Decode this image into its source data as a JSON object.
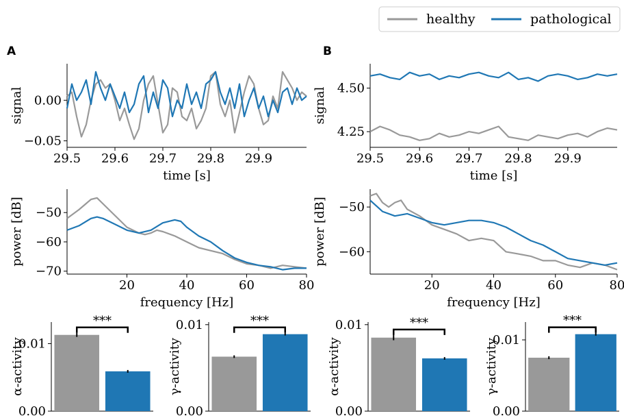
{
  "legend": {
    "placement": "top-right",
    "entries": [
      {
        "label": "healthy",
        "color": "#999999"
      },
      {
        "label": "pathological",
        "color": "#1f77b4"
      }
    ]
  },
  "panels": {
    "A": "A",
    "B": "B"
  },
  "chart_data": [
    {
      "id": "A-signal",
      "panel": "A",
      "type": "line",
      "xlabel": "time [s]",
      "ylabel": "signal",
      "xlim": [
        29.5,
        30.0
      ],
      "ylim": [
        -0.058,
        0.045
      ],
      "xticks": [
        29.5,
        29.6,
        29.7,
        29.8,
        29.9
      ],
      "xtick_labels": [
        "29.5",
        "29.6",
        "29.7",
        "29.8",
        "29.9"
      ],
      "yticks": [
        0.0,
        -0.05
      ],
      "ytick_labels": [
        "0.00",
        "−0.05"
      ],
      "grid": false,
      "series": [
        {
          "name": "healthy",
          "color": "#999999",
          "x": [
            29.5,
            29.51,
            29.52,
            29.53,
            29.54,
            29.55,
            29.56,
            29.57,
            29.58,
            29.59,
            29.6,
            29.61,
            29.62,
            29.63,
            29.64,
            29.65,
            29.66,
            29.67,
            29.68,
            29.69,
            29.7,
            29.71,
            29.72,
            29.73,
            29.74,
            29.75,
            29.76,
            29.77,
            29.78,
            29.79,
            29.8,
            29.81,
            29.82,
            29.83,
            29.84,
            29.85,
            29.86,
            29.87,
            29.88,
            29.89,
            29.9,
            29.91,
            29.92,
            29.93,
            29.94,
            29.95,
            29.96,
            29.97,
            29.98,
            29.99,
            30.0
          ],
          "y": [
            0.005,
            0.01,
            -0.02,
            -0.045,
            -0.03,
            0.0,
            0.02,
            0.025,
            0.015,
            0.02,
            0.0,
            -0.025,
            -0.01,
            -0.03,
            -0.048,
            -0.035,
            0.0,
            0.02,
            0.03,
            -0.005,
            -0.04,
            -0.03,
            0.015,
            0.01,
            -0.02,
            -0.025,
            -0.01,
            -0.035,
            -0.025,
            -0.01,
            0.03,
            0.035,
            -0.005,
            -0.02,
            0.0,
            -0.04,
            -0.015,
            0.01,
            0.03,
            0.02,
            -0.01,
            -0.03,
            -0.025,
            0.005,
            -0.01,
            0.035,
            0.025,
            0.015,
            0.0,
            0.01,
            0.005
          ]
        },
        {
          "name": "pathological",
          "color": "#1f77b4",
          "x": [
            29.5,
            29.51,
            29.52,
            29.53,
            29.54,
            29.55,
            29.56,
            29.57,
            29.58,
            29.59,
            29.6,
            29.61,
            29.62,
            29.63,
            29.64,
            29.65,
            29.66,
            29.67,
            29.68,
            29.69,
            29.7,
            29.71,
            29.72,
            29.73,
            29.74,
            29.75,
            29.76,
            29.77,
            29.78,
            29.79,
            29.8,
            29.81,
            29.82,
            29.83,
            29.84,
            29.85,
            29.86,
            29.87,
            29.88,
            29.89,
            29.9,
            29.91,
            29.92,
            29.93,
            29.94,
            29.95,
            29.96,
            29.97,
            29.98,
            29.99,
            30.0
          ],
          "y": [
            -0.01,
            0.02,
            0.0,
            0.01,
            0.025,
            -0.005,
            0.035,
            0.015,
            0.0,
            0.02,
            0.005,
            -0.01,
            0.01,
            -0.015,
            -0.005,
            0.02,
            0.03,
            -0.015,
            0.01,
            -0.01,
            0.025,
            0.015,
            -0.02,
            0.0,
            -0.01,
            0.02,
            -0.005,
            0.01,
            -0.01,
            0.02,
            0.025,
            0.035,
            0.01,
            -0.005,
            0.015,
            -0.01,
            0.02,
            -0.02,
            0.0,
            0.015,
            -0.01,
            0.005,
            -0.02,
            0.0,
            -0.015,
            0.01,
            0.015,
            -0.005,
            0.015,
            0.0,
            0.005
          ]
        }
      ]
    },
    {
      "id": "B-signal",
      "panel": "B",
      "type": "line",
      "xlabel": "time [s]",
      "ylabel": "signal",
      "xlim": [
        29.5,
        30.0
      ],
      "ylim": [
        4.16,
        4.64
      ],
      "xticks": [
        29.5,
        29.6,
        29.7,
        29.8,
        29.9
      ],
      "xtick_labels": [
        "29.5",
        "29.6",
        "29.7",
        "29.8",
        "29.9"
      ],
      "yticks": [
        4.25,
        4.5
      ],
      "ytick_labels": [
        "4.25",
        "4.50"
      ],
      "grid": false,
      "series": [
        {
          "name": "healthy",
          "color": "#999999",
          "x": [
            29.5,
            29.52,
            29.54,
            29.56,
            29.58,
            29.6,
            29.62,
            29.64,
            29.66,
            29.68,
            29.7,
            29.72,
            29.74,
            29.76,
            29.78,
            29.8,
            29.82,
            29.84,
            29.86,
            29.88,
            29.9,
            29.92,
            29.94,
            29.96,
            29.98,
            30.0
          ],
          "y": [
            4.25,
            4.28,
            4.26,
            4.23,
            4.22,
            4.2,
            4.21,
            4.24,
            4.22,
            4.23,
            4.25,
            4.24,
            4.26,
            4.28,
            4.22,
            4.21,
            4.2,
            4.23,
            4.22,
            4.21,
            4.23,
            4.24,
            4.22,
            4.25,
            4.27,
            4.26
          ]
        },
        {
          "name": "pathological",
          "color": "#1f77b4",
          "x": [
            29.5,
            29.52,
            29.54,
            29.56,
            29.58,
            29.6,
            29.62,
            29.64,
            29.66,
            29.68,
            29.7,
            29.72,
            29.74,
            29.76,
            29.78,
            29.8,
            29.82,
            29.84,
            29.86,
            29.88,
            29.9,
            29.92,
            29.94,
            29.96,
            29.98,
            30.0
          ],
          "y": [
            4.57,
            4.58,
            4.56,
            4.55,
            4.59,
            4.57,
            4.58,
            4.55,
            4.57,
            4.56,
            4.58,
            4.59,
            4.57,
            4.56,
            4.59,
            4.55,
            4.56,
            4.54,
            4.57,
            4.58,
            4.57,
            4.55,
            4.56,
            4.58,
            4.57,
            4.58
          ]
        }
      ]
    },
    {
      "id": "A-power",
      "panel": "A",
      "type": "line",
      "xlabel": "frequency [Hz]",
      "ylabel": "power [dB]",
      "xlim": [
        0,
        80
      ],
      "ylim": [
        -71,
        -42
      ],
      "xticks": [
        20,
        40,
        60,
        80
      ],
      "xtick_labels": [
        "20",
        "40",
        "60",
        "80"
      ],
      "yticks": [
        -50,
        -60,
        -70
      ],
      "ytick_labels": [
        "−50",
        "−60",
        "−70"
      ],
      "grid": false,
      "series": [
        {
          "name": "healthy",
          "color": "#999999",
          "x": [
            0,
            4,
            8,
            10,
            12,
            16,
            20,
            24,
            26,
            28,
            30,
            32,
            36,
            40,
            44,
            48,
            52,
            56,
            60,
            64,
            68,
            72,
            76,
            80
          ],
          "y": [
            -52,
            -49,
            -45.5,
            -45,
            -47,
            -51,
            -55,
            -57,
            -57.5,
            -57,
            -56,
            -56.5,
            -58,
            -60,
            -62,
            -63,
            -64,
            -66,
            -67.5,
            -68,
            -69,
            -68,
            -68.5,
            -69
          ]
        },
        {
          "name": "pathological",
          "color": "#1f77b4",
          "x": [
            0,
            4,
            8,
            10,
            12,
            16,
            20,
            24,
            28,
            32,
            36,
            38,
            40,
            44,
            48,
            52,
            56,
            60,
            64,
            68,
            72,
            76,
            80
          ],
          "y": [
            -56,
            -54.5,
            -52,
            -51.5,
            -52,
            -54,
            -56,
            -57,
            -56,
            -53.5,
            -52.5,
            -53,
            -55,
            -58,
            -60,
            -63,
            -65.5,
            -67,
            -68,
            -68.5,
            -69.5,
            -69,
            -69
          ]
        }
      ]
    },
    {
      "id": "B-power",
      "panel": "B",
      "type": "line",
      "xlabel": "frequency [Hz]",
      "ylabel": "power [dB]",
      "xlim": [
        0,
        80
      ],
      "ylim": [
        -65,
        -46
      ],
      "xticks": [
        20,
        40,
        60,
        80
      ],
      "xtick_labels": [
        "20",
        "40",
        "60",
        "80"
      ],
      "yticks": [
        -50,
        -60
      ],
      "ytick_labels": [
        "−50",
        "−60"
      ],
      "grid": false,
      "series": [
        {
          "name": "healthy",
          "color": "#999999",
          "x": [
            0,
            2,
            4,
            6,
            8,
            10,
            12,
            16,
            20,
            24,
            28,
            32,
            36,
            40,
            44,
            48,
            52,
            56,
            60,
            64,
            68,
            72,
            76,
            80
          ],
          "y": [
            -47.5,
            -47,
            -49,
            -50,
            -49,
            -48.5,
            -50.5,
            -52,
            -54,
            -55,
            -56,
            -57.5,
            -57,
            -57.5,
            -60,
            -60.5,
            -61,
            -62,
            -62,
            -63,
            -63.5,
            -62.5,
            -63,
            -64
          ]
        },
        {
          "name": "pathological",
          "color": "#1f77b4",
          "x": [
            0,
            4,
            8,
            12,
            16,
            20,
            24,
            28,
            32,
            36,
            40,
            44,
            48,
            52,
            56,
            60,
            64,
            68,
            72,
            76,
            80
          ],
          "y": [
            -48.5,
            -51,
            -52,
            -51.5,
            -52.5,
            -53.5,
            -54,
            -53.5,
            -53,
            -53,
            -53.5,
            -54.5,
            -56,
            -57.5,
            -58.5,
            -60,
            -61.5,
            -62,
            -62.5,
            -63,
            -62.5
          ]
        }
      ]
    },
    {
      "id": "A-alpha",
      "panel": "A",
      "type": "bar",
      "categories": [
        "healthy",
        "pathological"
      ],
      "values": [
        0.0113,
        0.0059
      ],
      "errors": [
        0.0003,
        0.0002
      ],
      "colors": [
        "#999999",
        "#1f77b4"
      ],
      "ylabel": "α-activity",
      "ylim": [
        0,
        0.0132
      ],
      "yticks": [
        0.0,
        0.01
      ],
      "ytick_labels": [
        "0.00",
        "0.01"
      ],
      "significance": "***"
    },
    {
      "id": "A-gamma",
      "panel": "A",
      "type": "bar",
      "categories": [
        "healthy",
        "pathological"
      ],
      "values": [
        0.0063,
        0.0089
      ],
      "errors": [
        0.00015,
        0.00015
      ],
      "colors": [
        "#999999",
        "#1f77b4"
      ],
      "ylabel": "γ-activity",
      "ylim": [
        0,
        0.0103
      ],
      "yticks": [
        0.0,
        0.01
      ],
      "ytick_labels": [
        "0.00",
        "0.01"
      ],
      "significance": "***"
    },
    {
      "id": "B-alpha",
      "panel": "B",
      "type": "bar",
      "categories": [
        "healthy",
        "pathological"
      ],
      "values": [
        0.0085,
        0.0061
      ],
      "errors": [
        0.0003,
        0.00015
      ],
      "colors": [
        "#999999",
        "#1f77b4"
      ],
      "ylabel": "α-activity",
      "ylim": [
        0,
        0.0103
      ],
      "yticks": [
        0.0,
        0.01
      ],
      "ytick_labels": [
        "0.00",
        "0.01"
      ],
      "significance": "***"
    },
    {
      "id": "B-gamma",
      "panel": "B",
      "type": "bar",
      "categories": [
        "healthy",
        "pathological"
      ],
      "values": [
        0.0075,
        0.0108
      ],
      "errors": [
        0.0002,
        0.0002
      ],
      "colors": [
        "#999999",
        "#1f77b4"
      ],
      "ylabel": "γ-activity",
      "ylim": [
        0,
        0.0125
      ],
      "yticks": [
        0.0,
        0.01
      ],
      "ytick_labels": [
        "0.00",
        "0.01"
      ],
      "significance": "***"
    }
  ]
}
